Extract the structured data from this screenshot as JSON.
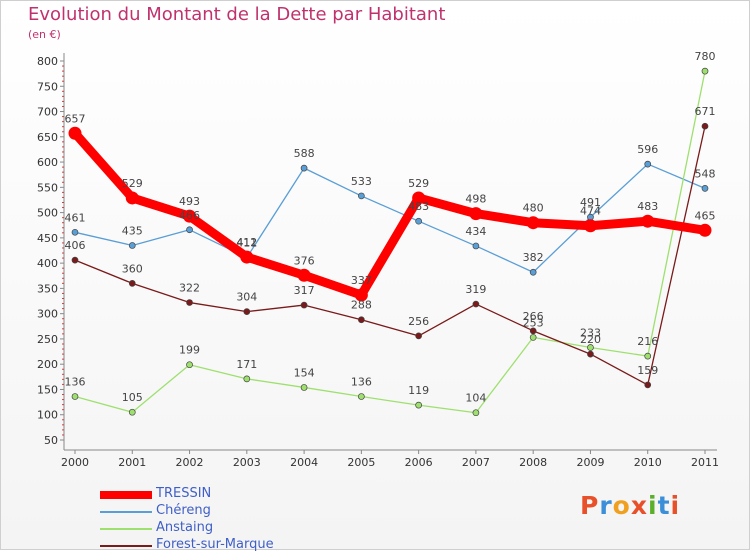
{
  "title": "Evolution du Montant de la Dette par Habitant",
  "unit": "(en €)",
  "logo": {
    "letters": [
      "P",
      "r",
      "o",
      "x",
      "i",
      "t",
      "i"
    ],
    "colors": [
      "#e8502a",
      "#3a8fd8",
      "#f0a020",
      "#e8502a",
      "#5ab02a",
      "#3a8fd8",
      "#e8502a"
    ]
  },
  "chart_data": {
    "type": "line",
    "x": [
      "2000",
      "2001",
      "2002",
      "2003",
      "2004",
      "2005",
      "2006",
      "2007",
      "2008",
      "2009",
      "2010",
      "2011"
    ],
    "yticks": [
      50,
      100,
      150,
      200,
      250,
      300,
      350,
      400,
      450,
      500,
      550,
      600,
      650,
      700,
      750,
      800
    ],
    "ylim": [
      50,
      800
    ],
    "grid": false,
    "legend_position": "bottom-left",
    "series": [
      {
        "name": "TRESSIN",
        "color": "#ff0000",
        "values": [
          657,
          529,
          493,
          412,
          376,
          337,
          529,
          498,
          480,
          474,
          483,
          465
        ]
      },
      {
        "name": "Chéreng",
        "color": "#5a9ed6",
        "values": [
          461,
          435,
          466,
          411,
          588,
          533,
          483,
          434,
          382,
          491,
          596,
          548
        ]
      },
      {
        "name": "Anstaing",
        "color": "#9ee06e",
        "values": [
          136,
          105,
          199,
          171,
          154,
          136,
          119,
          104,
          253,
          233,
          216,
          780
        ]
      },
      {
        "name": "Forest-sur-Marque",
        "color": "#7a1a1a",
        "values": [
          406,
          360,
          322,
          304,
          317,
          288,
          256,
          319,
          266,
          220,
          159,
          671
        ]
      }
    ]
  }
}
